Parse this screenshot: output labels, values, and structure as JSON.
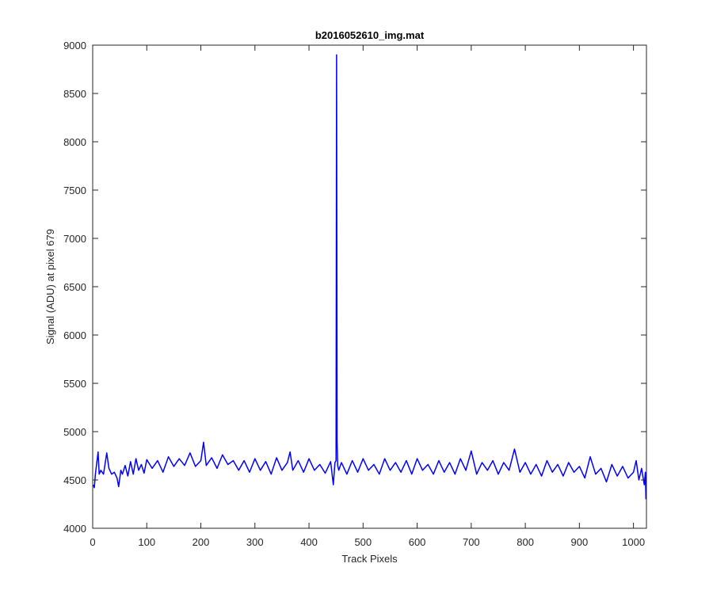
{
  "chart_data": {
    "type": "line",
    "title": "b2016052610_img.mat",
    "xlabel": "Track Pixels",
    "ylabel": "Signal (ADU) at pixel 679",
    "xlim": [
      0,
      1024
    ],
    "ylim": [
      4000,
      9000
    ],
    "xticks": [
      0,
      100,
      200,
      300,
      400,
      500,
      600,
      700,
      800,
      900,
      1000
    ],
    "yticks": [
      4000,
      4500,
      5000,
      5500,
      6000,
      6500,
      7000,
      7500,
      8000,
      8500,
      9000
    ],
    "grid": false,
    "legend": "none",
    "series": [
      {
        "color": "#0000ff",
        "x": [
          1,
          3,
          5,
          10,
          12,
          15,
          20,
          26,
          30,
          35,
          40,
          45,
          48,
          52,
          55,
          60,
          65,
          70,
          75,
          80,
          85,
          90,
          95,
          100,
          110,
          120,
          130,
          140,
          150,
          160,
          170,
          180,
          190,
          200,
          205,
          210,
          220,
          230,
          240,
          250,
          260,
          270,
          280,
          290,
          300,
          310,
          320,
          330,
          340,
          350,
          360,
          365,
          370,
          380,
          390,
          400,
          410,
          420,
          430,
          440,
          445,
          448,
          450,
          451,
          452,
          453,
          455,
          460,
          470,
          480,
          490,
          500,
          510,
          520,
          530,
          540,
          550,
          560,
          570,
          580,
          590,
          600,
          610,
          620,
          630,
          640,
          650,
          660,
          670,
          680,
          690,
          700,
          710,
          720,
          730,
          740,
          750,
          760,
          770,
          780,
          790,
          800,
          810,
          820,
          830,
          840,
          850,
          860,
          870,
          880,
          890,
          900,
          910,
          920,
          930,
          940,
          950,
          960,
          970,
          980,
          990,
          1000,
          1005,
          1010,
          1015,
          1020,
          1022,
          1023
        ],
        "y": [
          4450,
          4420,
          4560,
          4790,
          4560,
          4600,
          4560,
          4780,
          4620,
          4560,
          4580,
          4520,
          4430,
          4600,
          4560,
          4650,
          4540,
          4690,
          4560,
          4720,
          4600,
          4660,
          4570,
          4710,
          4620,
          4700,
          4580,
          4740,
          4640,
          4720,
          4650,
          4780,
          4640,
          4700,
          4890,
          4650,
          4730,
          4620,
          4760,
          4660,
          4700,
          4600,
          4700,
          4580,
          4720,
          4600,
          4690,
          4560,
          4730,
          4600,
          4680,
          4790,
          4600,
          4700,
          4580,
          4720,
          4600,
          4660,
          4570,
          4690,
          4450,
          4680,
          4700,
          8900,
          4900,
          4650,
          4600,
          4680,
          4560,
          4700,
          4580,
          4720,
          4600,
          4660,
          4560,
          4720,
          4600,
          4680,
          4580,
          4700,
          4560,
          4720,
          4600,
          4660,
          4560,
          4700,
          4580,
          4680,
          4560,
          4720,
          4600,
          4800,
          4560,
          4680,
          4600,
          4700,
          4560,
          4680,
          4600,
          4820,
          4580,
          4680,
          4560,
          4660,
          4540,
          4700,
          4580,
          4660,
          4540,
          4680,
          4580,
          4640,
          4520,
          4740,
          4560,
          4620,
          4480,
          4660,
          4540,
          4640,
          4520,
          4580,
          4700,
          4500,
          4620,
          4450,
          4580,
          4300
        ]
      }
    ]
  }
}
